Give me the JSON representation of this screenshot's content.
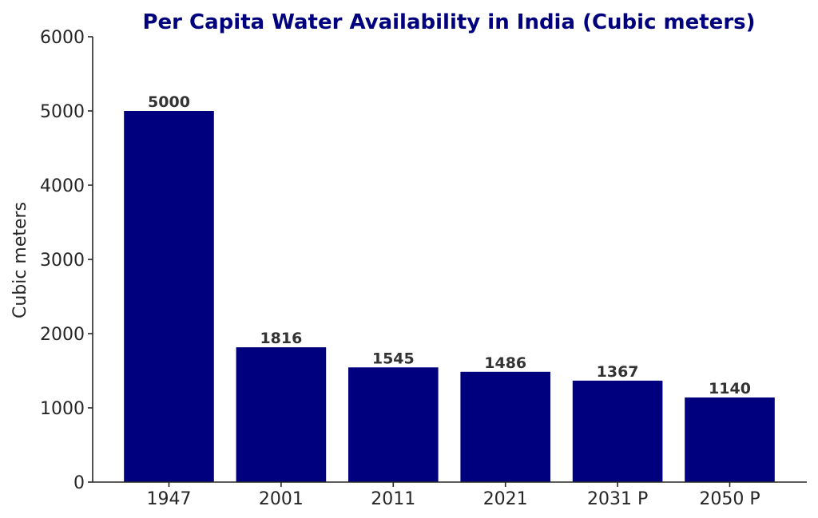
{
  "chart_data": {
    "type": "bar",
    "title": "Per Capita Water Availability in India (Cubic meters)",
    "xlabel": "",
    "ylabel": "Cubic meters",
    "categories": [
      "1947",
      "2001",
      "2011",
      "2021",
      "2031 P",
      "2050 P"
    ],
    "values": [
      5000,
      1816,
      1545,
      1486,
      1367,
      1140
    ],
    "data_labels": [
      "5000",
      "1816",
      "1545",
      "1486",
      "1367",
      "1140"
    ],
    "ylim": [
      0,
      6000
    ],
    "yticks": [
      0,
      1000,
      2000,
      3000,
      4000,
      5000,
      6000
    ],
    "ytick_labels": [
      "0",
      "1000",
      "2000",
      "3000",
      "4000",
      "5000",
      "6000"
    ],
    "grid": false,
    "colors": {
      "bar": "#00007f",
      "title": "#00007f",
      "axis": "#262626",
      "data_label": "#333333"
    }
  }
}
